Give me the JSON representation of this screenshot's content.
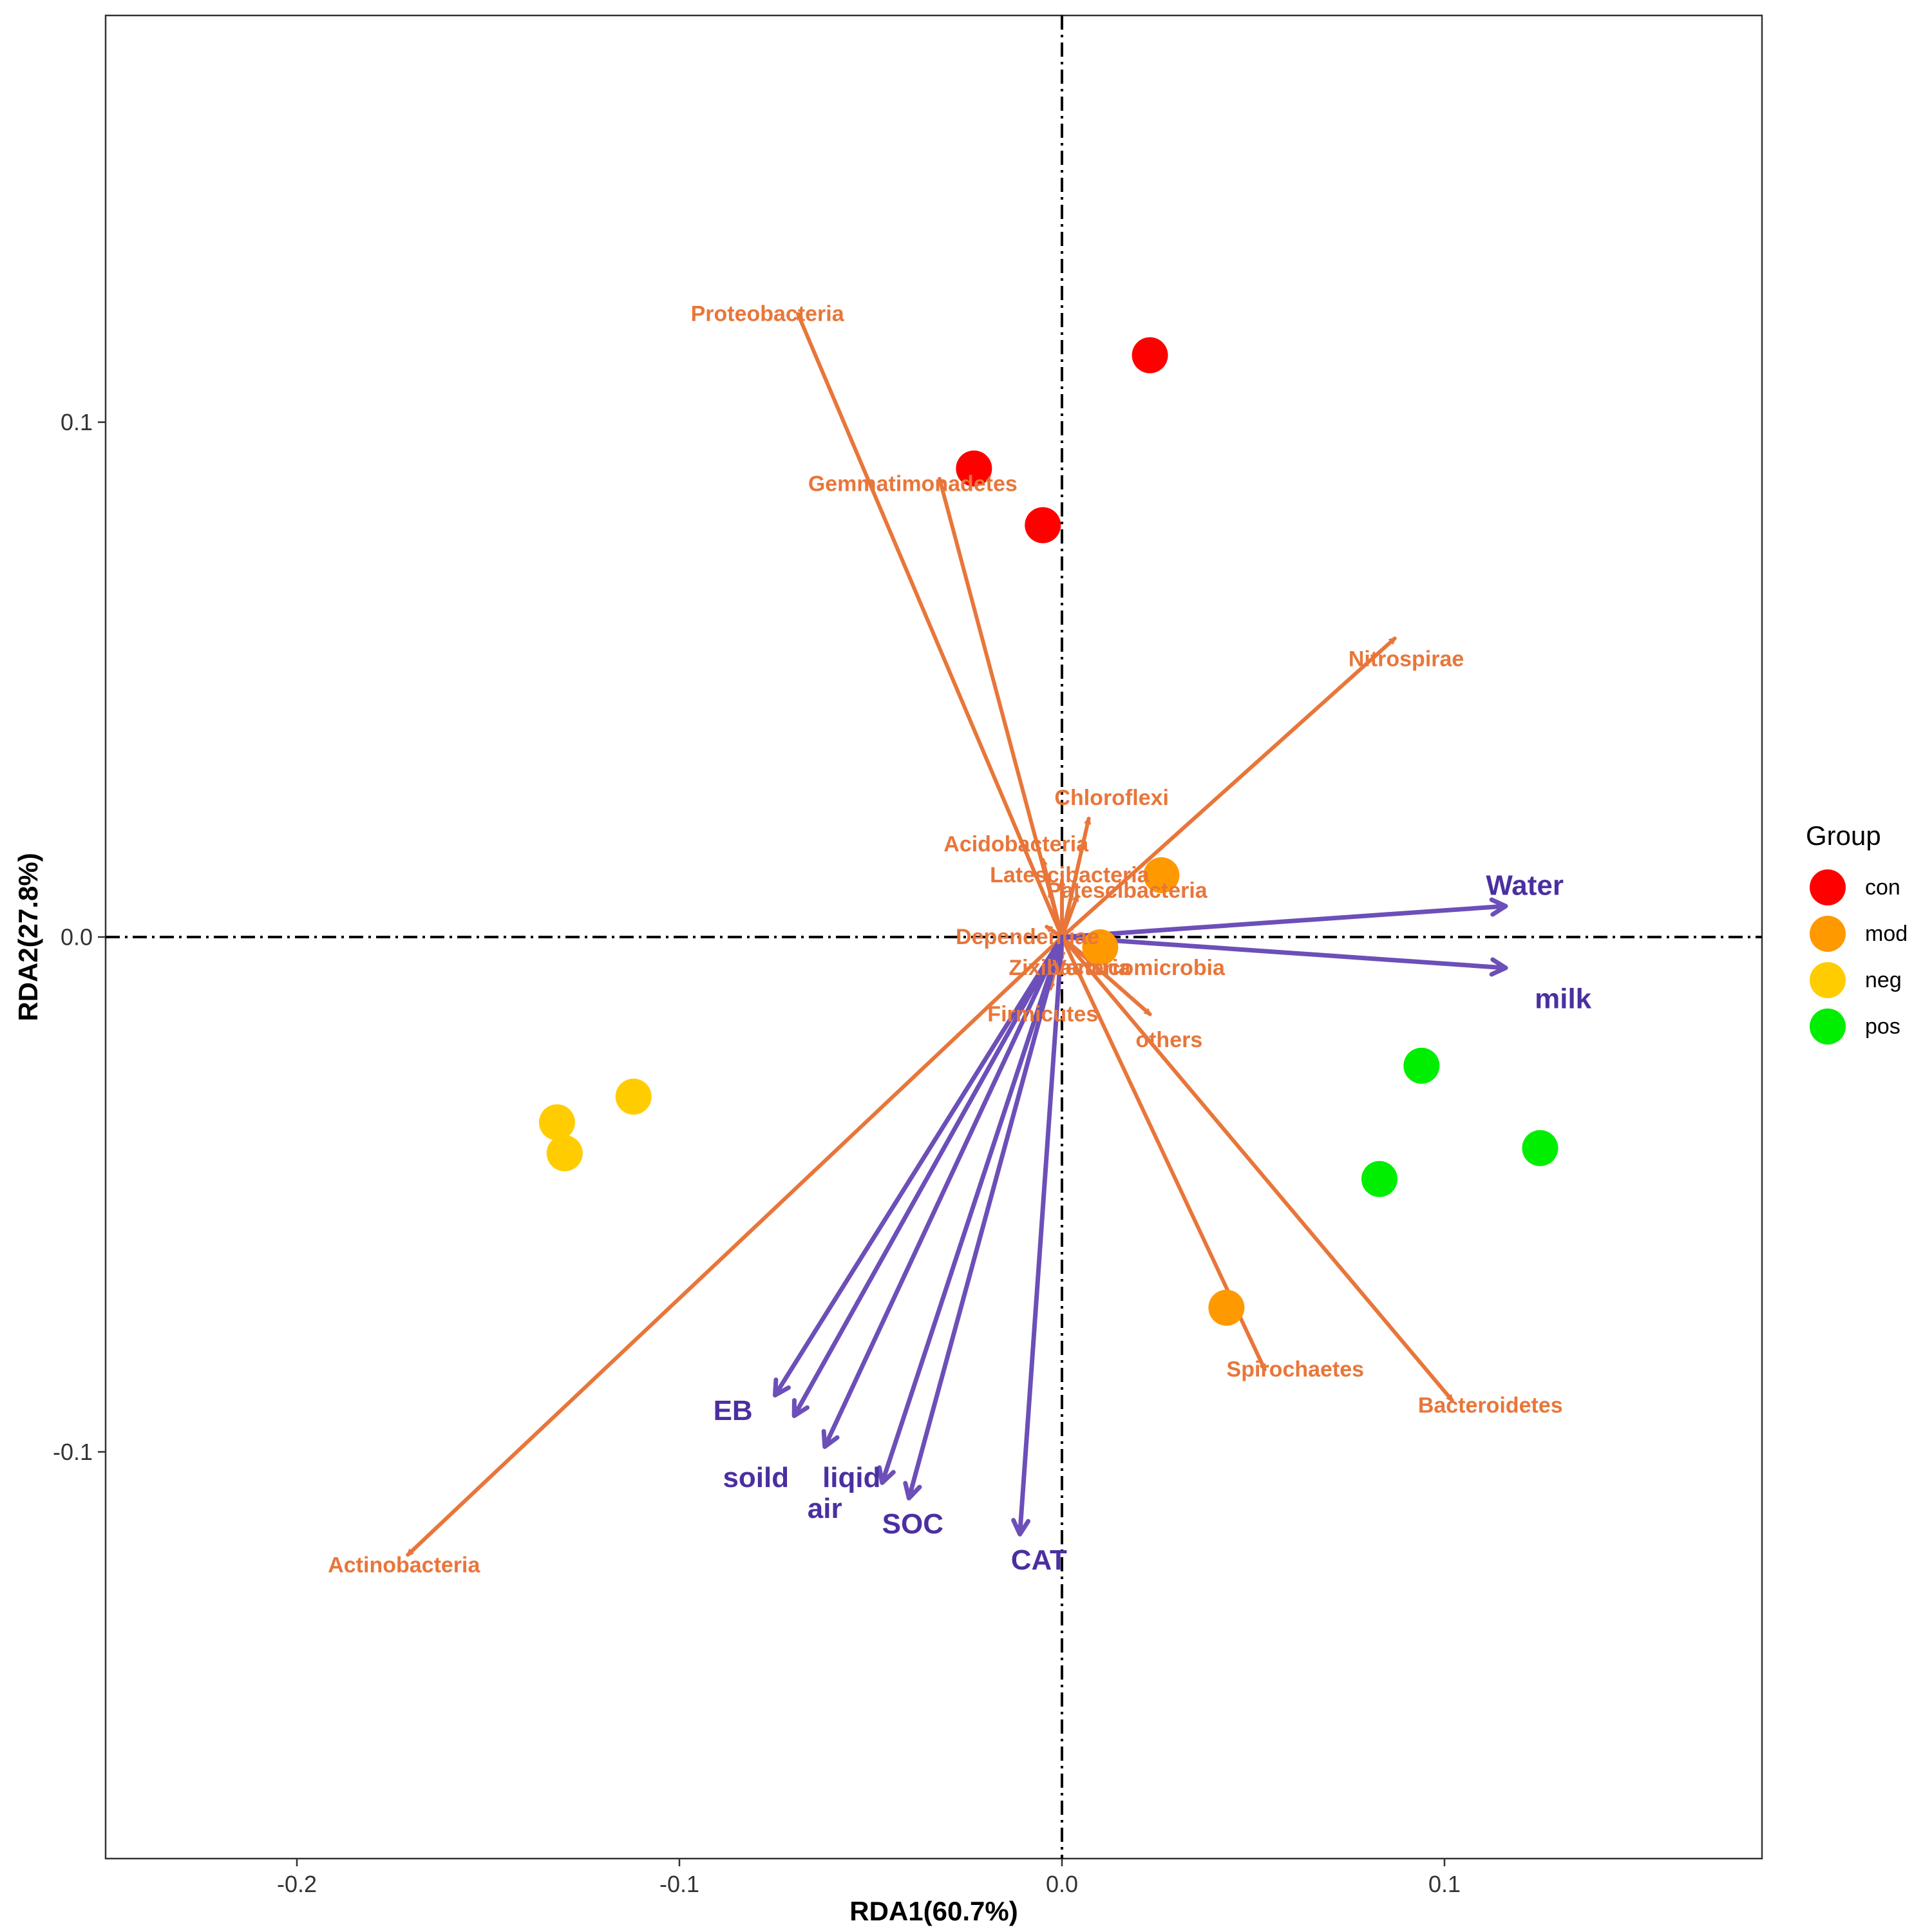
{
  "chart_data": {
    "type": "scatter",
    "subtype": "rda-biplot",
    "xlabel": "RDA1(60.7%)",
    "ylabel": "RDA2(27.8%)",
    "xlim": [
      -0.25,
      0.183
    ],
    "ylim": [
      -0.179,
      0.179
    ],
    "x_ticks": [
      -0.2,
      -0.1,
      0.0,
      0.1
    ],
    "x_tick_labels": [
      "-0.2",
      "-0.1",
      "0.0",
      "0.1"
    ],
    "y_ticks": [
      -0.1,
      0.0,
      0.1
    ],
    "y_tick_labels": [
      "-0.1",
      "0.0",
      "0.1"
    ],
    "grid": false,
    "legend": {
      "title": "Group",
      "position": "right",
      "entries": [
        {
          "label": "con",
          "color": "#FF0000"
        },
        {
          "label": "mod",
          "color": "#FF9900"
        },
        {
          "label": "neg",
          "color": "#FFCC00"
        },
        {
          "label": "pos",
          "color": "#00EE00"
        }
      ]
    },
    "samples": [
      {
        "group": "con",
        "x": 0.023,
        "y": 0.113
      },
      {
        "group": "con",
        "x": -0.023,
        "y": 0.091
      },
      {
        "group": "con",
        "x": -0.005,
        "y": 0.08
      },
      {
        "group": "mod",
        "x": 0.026,
        "y": 0.012
      },
      {
        "group": "mod",
        "x": 0.01,
        "y": -0.002
      },
      {
        "group": "mod",
        "x": 0.043,
        "y": -0.072
      },
      {
        "group": "neg",
        "x": -0.112,
        "y": -0.031
      },
      {
        "group": "neg",
        "x": -0.132,
        "y": -0.036
      },
      {
        "group": "neg",
        "x": -0.13,
        "y": -0.042
      },
      {
        "group": "pos",
        "x": 0.094,
        "y": -0.025
      },
      {
        "group": "pos",
        "x": 0.125,
        "y": -0.041
      },
      {
        "group": "pos",
        "x": 0.083,
        "y": -0.047
      }
    ],
    "species_color": "#E8763A",
    "species": [
      {
        "name": "Proteobacteria",
        "x": -0.069,
        "y": 0.121,
        "lx": -0.077,
        "ly": 0.121
      },
      {
        "name": "Gemmatimonadetes",
        "x": -0.032,
        "y": 0.089,
        "lx": -0.039,
        "ly": 0.088
      },
      {
        "name": "Nitrospirae",
        "x": 0.087,
        "y": 0.058,
        "lx": 0.09,
        "ly": 0.054
      },
      {
        "name": "Chloroflexi",
        "x": 0.007,
        "y": 0.023,
        "lx": 0.013,
        "ly": 0.027
      },
      {
        "name": "Acidobacteria",
        "x": -0.005,
        "y": 0.015,
        "lx": -0.012,
        "ly": 0.018
      },
      {
        "name": "Latescibacteria",
        "x": 0.0,
        "y": 0.011,
        "lx": 0.002,
        "ly": 0.012
      },
      {
        "name": "Patescibacteria",
        "x": 0.004,
        "y": 0.008,
        "lx": 0.017,
        "ly": 0.009
      },
      {
        "name": "Dependentiae",
        "x": -0.004,
        "y": 0.002,
        "lx": -0.009,
        "ly": 0.0
      },
      {
        "name": "Zixibacteria",
        "x": 0.0,
        "y": -0.004,
        "lx": 0.002,
        "ly": -0.006
      },
      {
        "name": "Verrucomicrobia",
        "x": 0.008,
        "y": -0.005,
        "lx": 0.02,
        "ly": -0.006
      },
      {
        "name": "Firmicutes",
        "x": -0.003,
        "y": -0.01,
        "lx": -0.005,
        "ly": -0.015
      },
      {
        "name": "others",
        "x": 0.023,
        "y": -0.015,
        "lx": 0.028,
        "ly": -0.02
      },
      {
        "name": "Spirochaetes",
        "x": 0.053,
        "y": -0.084,
        "lx": 0.061,
        "ly": -0.084
      },
      {
        "name": "Bacteroidetes",
        "x": 0.102,
        "y": -0.09,
        "lx": 0.112,
        "ly": -0.091
      },
      {
        "name": "Actinobacteria",
        "x": -0.171,
        "y": -0.12,
        "lx": -0.172,
        "ly": -0.122
      }
    ],
    "env_color": "#6C4FB8",
    "env_label_color": "#4B2FA0",
    "env": [
      {
        "name": "Water",
        "x": 0.116,
        "y": 0.006,
        "lx": 0.121,
        "ly": 0.01
      },
      {
        "name": "milk",
        "x": 0.116,
        "y": -0.006,
        "lx": 0.131,
        "ly": -0.012
      },
      {
        "name": "EB",
        "x": -0.075,
        "y": -0.089,
        "lx": -0.086,
        "ly": -0.092
      },
      {
        "name": "soild",
        "x": -0.07,
        "y": -0.093,
        "lx": -0.08,
        "ly": -0.105
      },
      {
        "name": "liqid",
        "x": -0.062,
        "y": -0.099,
        "lx": -0.055,
        "ly": -0.105
      },
      {
        "name": "air",
        "x": -0.047,
        "y": -0.106,
        "lx": -0.062,
        "ly": -0.111
      },
      {
        "name": "SOC",
        "x": -0.04,
        "y": -0.109,
        "lx": -0.039,
        "ly": -0.114
      },
      {
        "name": "CAT",
        "x": -0.011,
        "y": -0.116,
        "lx": -0.006,
        "ly": -0.121
      }
    ]
  }
}
